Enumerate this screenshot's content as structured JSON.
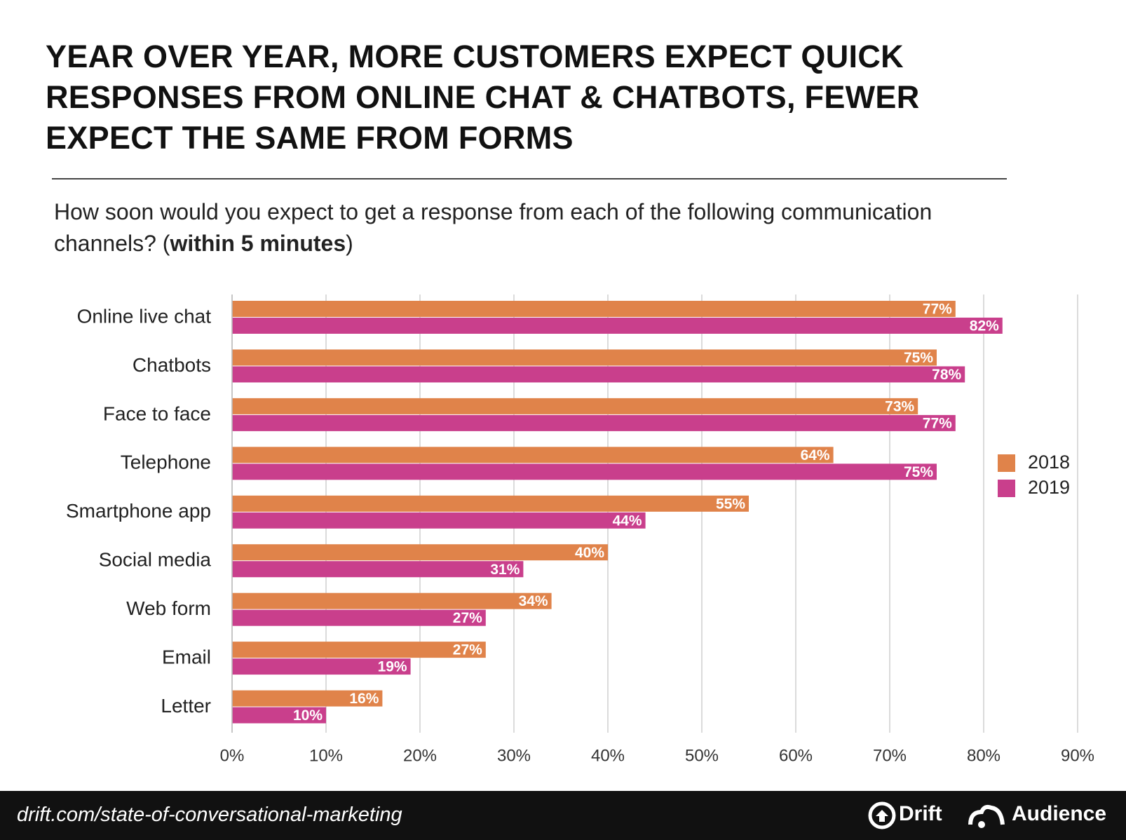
{
  "chart_data": {
    "type": "hbar",
    "title": "YEAR OVER YEAR, MORE CUSTOMERS EXPECT QUICK RESPONSES FROM ONLINE CHAT & CHATBOTS, FEWER EXPECT THE SAME FROM FORMS",
    "subtitle": [
      "How soon would you expect to get a response from each of the following communication channels? (",
      "within 5 minutes",
      ")"
    ],
    "categories": [
      "Online live chat",
      "Chatbots",
      "Face to face",
      "Telephone",
      "Smartphone app",
      "Social media",
      "Web form",
      "Email",
      "Letter"
    ],
    "series": [
      {
        "name": "2018",
        "color": "#e0834a",
        "values": [
          77,
          75,
          73,
          64,
          55,
          40,
          34,
          27,
          16
        ],
        "value_labels": [
          "77%",
          "75%",
          "73%",
          "64%",
          "55%",
          "40%",
          "34%",
          "27%",
          "16%"
        ]
      },
      {
        "name": "2019",
        "color": "#c93f8c",
        "values": [
          82,
          78,
          77,
          75,
          44,
          31,
          27,
          19,
          10
        ],
        "value_labels": [
          "82%",
          "78%",
          "77%",
          "75%",
          "44%",
          "31%",
          "27%",
          "19%",
          "10%"
        ]
      }
    ],
    "xlim": [
      0,
      90
    ],
    "xticks": [
      {
        "value": 0,
        "label": "0%"
      },
      {
        "value": 10,
        "label": "10%"
      },
      {
        "value": 20,
        "label": "20%"
      },
      {
        "value": 30,
        "label": "30%"
      },
      {
        "value": 40,
        "label": "40%"
      },
      {
        "value": 50,
        "label": "50%"
      },
      {
        "value": 60,
        "label": "60%"
      },
      {
        "value": 70,
        "label": "70%"
      },
      {
        "value": 80,
        "label": "80%"
      },
      {
        "value": 90,
        "label": "90%"
      }
    ],
    "grid": true,
    "legend": "right"
  },
  "footer": {
    "source": "drift.com/state-of-conversational-marketing",
    "logos": [
      "Drift",
      "Audience"
    ]
  }
}
